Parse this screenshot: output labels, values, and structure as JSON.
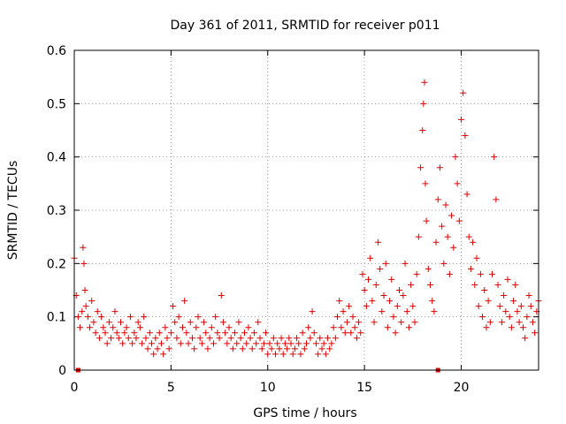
{
  "chart_data": {
    "type": "scatter",
    "title": "Day 361 of 2011, SRMTID for receiver p011",
    "xlabel": "GPS time / hours",
    "ylabel": "SRMTID / TECUs",
    "xlim": [
      0,
      24
    ],
    "ylim": [
      0,
      0.6
    ],
    "xticks": [
      0,
      5,
      10,
      15,
      20
    ],
    "yticks": [
      0,
      0.1,
      0.2,
      0.3,
      0.4,
      0.5,
      0.6
    ],
    "xtick_labels": [
      "0",
      "5",
      "10",
      "15",
      "20"
    ],
    "ytick_labels": [
      "0",
      "0.1",
      "0.2",
      "0.3",
      "0.4",
      "0.5",
      "0.6"
    ],
    "grid": true,
    "marker": "+",
    "color": "#e00000",
    "axis_markers_x": [
      0.2,
      18.8
    ],
    "series": [
      {
        "name": "SRMTID p011",
        "x": [
          0.0,
          0.1,
          0.2,
          0.3,
          0.4,
          0.45,
          0.5,
          0.55,
          0.6,
          0.7,
          0.8,
          0.9,
          1.0,
          1.1,
          1.2,
          1.3,
          1.4,
          1.5,
          1.6,
          1.7,
          1.8,
          1.9,
          2.0,
          2.1,
          2.2,
          2.3,
          2.4,
          2.5,
          2.6,
          2.7,
          2.8,
          2.9,
          3.0,
          3.1,
          3.2,
          3.3,
          3.4,
          3.5,
          3.6,
          3.7,
          3.8,
          3.9,
          4.0,
          4.1,
          4.2,
          4.3,
          4.4,
          4.5,
          4.6,
          4.7,
          4.8,
          4.9,
          5.0,
          5.1,
          5.2,
          5.3,
          5.4,
          5.5,
          5.6,
          5.7,
          5.8,
          5.9,
          6.0,
          6.1,
          6.2,
          6.3,
          6.4,
          6.5,
          6.6,
          6.7,
          6.8,
          6.9,
          7.0,
          7.1,
          7.2,
          7.3,
          7.4,
          7.5,
          7.6,
          7.7,
          7.8,
          7.9,
          8.0,
          8.1,
          8.2,
          8.3,
          8.4,
          8.5,
          8.6,
          8.7,
          8.8,
          8.9,
          9.0,
          9.1,
          9.2,
          9.3,
          9.4,
          9.5,
          9.6,
          9.7,
          9.8,
          9.9,
          10.0,
          10.1,
          10.2,
          10.3,
          10.4,
          10.5,
          10.6,
          10.7,
          10.8,
          10.9,
          11.0,
          11.1,
          11.2,
          11.3,
          11.4,
          11.5,
          11.6,
          11.7,
          11.8,
          11.9,
          12.0,
          12.1,
          12.2,
          12.3,
          12.4,
          12.5,
          12.6,
          12.7,
          12.8,
          12.9,
          13.0,
          13.1,
          13.2,
          13.3,
          13.4,
          13.5,
          13.6,
          13.7,
          13.8,
          13.9,
          14.0,
          14.1,
          14.2,
          14.3,
          14.4,
          14.5,
          14.6,
          14.7,
          14.8,
          14.9,
          15.0,
          15.1,
          15.2,
          15.3,
          15.4,
          15.5,
          15.6,
          15.7,
          15.8,
          15.9,
          16.0,
          16.1,
          16.2,
          16.3,
          16.4,
          16.5,
          16.6,
          16.7,
          16.8,
          16.9,
          17.0,
          17.1,
          17.2,
          17.3,
          17.4,
          17.5,
          17.6,
          17.7,
          17.8,
          17.9,
          18.0,
          18.05,
          18.1,
          18.15,
          18.2,
          18.3,
          18.4,
          18.5,
          18.6,
          18.7,
          18.8,
          18.9,
          19.0,
          19.1,
          19.2,
          19.3,
          19.4,
          19.5,
          19.6,
          19.7,
          19.8,
          19.9,
          20.0,
          20.1,
          20.2,
          20.3,
          20.4,
          20.5,
          20.6,
          20.7,
          20.8,
          20.9,
          21.0,
          21.1,
          21.2,
          21.3,
          21.4,
          21.5,
          21.6,
          21.7,
          21.8,
          21.9,
          22.0,
          22.1,
          22.2,
          22.3,
          22.4,
          22.5,
          22.6,
          22.7,
          22.8,
          22.9,
          23.0,
          23.1,
          23.2,
          23.3,
          23.4,
          23.5,
          23.6,
          23.7,
          23.8,
          23.9,
          24.0
        ],
        "y": [
          0.21,
          0.14,
          0.1,
          0.08,
          0.11,
          0.23,
          0.2,
          0.15,
          0.12,
          0.1,
          0.08,
          0.13,
          0.09,
          0.07,
          0.11,
          0.06,
          0.1,
          0.08,
          0.07,
          0.05,
          0.09,
          0.06,
          0.08,
          0.11,
          0.07,
          0.06,
          0.09,
          0.05,
          0.07,
          0.08,
          0.06,
          0.1,
          0.05,
          0.07,
          0.06,
          0.09,
          0.08,
          0.05,
          0.1,
          0.06,
          0.04,
          0.07,
          0.05,
          0.03,
          0.06,
          0.04,
          0.07,
          0.05,
          0.03,
          0.08,
          0.06,
          0.04,
          0.07,
          0.12,
          0.09,
          0.06,
          0.1,
          0.05,
          0.08,
          0.13,
          0.07,
          0.05,
          0.09,
          0.06,
          0.04,
          0.08,
          0.1,
          0.06,
          0.05,
          0.09,
          0.07,
          0.04,
          0.06,
          0.08,
          0.05,
          0.1,
          0.07,
          0.06,
          0.14,
          0.09,
          0.07,
          0.05,
          0.08,
          0.06,
          0.04,
          0.07,
          0.05,
          0.09,
          0.06,
          0.04,
          0.07,
          0.05,
          0.08,
          0.06,
          0.04,
          0.07,
          0.05,
          0.09,
          0.06,
          0.04,
          0.05,
          0.07,
          0.03,
          0.05,
          0.04,
          0.06,
          0.03,
          0.05,
          0.04,
          0.06,
          0.03,
          0.05,
          0.04,
          0.06,
          0.05,
          0.03,
          0.04,
          0.06,
          0.05,
          0.03,
          0.07,
          0.04,
          0.05,
          0.08,
          0.06,
          0.11,
          0.07,
          0.05,
          0.03,
          0.06,
          0.04,
          0.05,
          0.03,
          0.06,
          0.04,
          0.05,
          0.08,
          0.06,
          0.1,
          0.13,
          0.08,
          0.11,
          0.07,
          0.09,
          0.12,
          0.07,
          0.1,
          0.08,
          0.06,
          0.09,
          0.07,
          0.18,
          0.15,
          0.12,
          0.17,
          0.21,
          0.13,
          0.09,
          0.16,
          0.24,
          0.19,
          0.11,
          0.14,
          0.2,
          0.08,
          0.13,
          0.17,
          0.1,
          0.07,
          0.12,
          0.15,
          0.09,
          0.14,
          0.2,
          0.11,
          0.08,
          0.16,
          0.12,
          0.09,
          0.18,
          0.25,
          0.38,
          0.45,
          0.5,
          0.54,
          0.35,
          0.28,
          0.19,
          0.16,
          0.13,
          0.11,
          0.24,
          0.32,
          0.38,
          0.27,
          0.2,
          0.31,
          0.25,
          0.18,
          0.29,
          0.23,
          0.4,
          0.35,
          0.28,
          0.47,
          0.52,
          0.44,
          0.33,
          0.25,
          0.19,
          0.24,
          0.16,
          0.21,
          0.12,
          0.18,
          0.1,
          0.15,
          0.08,
          0.13,
          0.09,
          0.18,
          0.4,
          0.32,
          0.16,
          0.12,
          0.09,
          0.14,
          0.11,
          0.17,
          0.1,
          0.08,
          0.13,
          0.16,
          0.11,
          0.09,
          0.12,
          0.08,
          0.06,
          0.1,
          0.14,
          0.12,
          0.09,
          0.07,
          0.11,
          0.13
        ]
      }
    ]
  }
}
